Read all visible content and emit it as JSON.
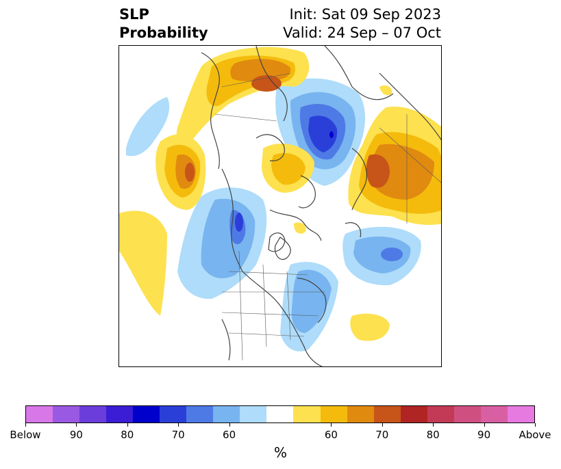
{
  "title": {
    "left_line1": "SLP",
    "left_line2": "Probability",
    "right_line1": "Init: Sat 09 Sep 2023",
    "right_line2": "Valid: 24 Sep – 07 Oct"
  },
  "map": {
    "region": "Northern Hemisphere polar stereographic",
    "colors": {
      "below_60": "#aedcfa",
      "below_70": "#78b4ef",
      "below_80": "#4e7ae6",
      "below_90": "#2a3fd8",
      "below_strong": "#0000cc",
      "above_60": "#fde14e",
      "above_65": "#f4bb0c",
      "above_70": "#e08a10",
      "above_75": "#c75418",
      "above_80": "#b02424",
      "coast": "#404040"
    }
  },
  "colorbar": {
    "colors": [
      "#d877e8",
      "#9a59e2",
      "#6b3ddb",
      "#3a1dd4",
      "#0000cc",
      "#2a3fd8",
      "#4e7ae6",
      "#78b4ef",
      "#aedcfa",
      "#ffffff",
      "#fde14e",
      "#f4bb0c",
      "#e08a10",
      "#c75418",
      "#b02424",
      "#c23a55",
      "#cf5080",
      "#d95fa3",
      "#e67ae0"
    ],
    "labels": [
      "Below",
      "90",
      "80",
      "70",
      "60",
      "60",
      "70",
      "80",
      "90",
      "Above"
    ],
    "unit": "%"
  }
}
